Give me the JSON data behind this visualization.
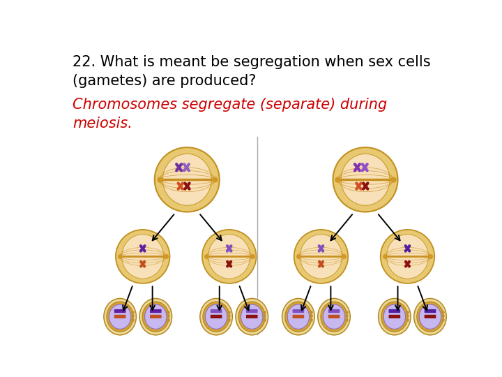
{
  "question_text": "22. What is meant be segregation when sex cells\n(gametes) are produced?",
  "answer_text": "Chromosomes segregate (separate) during\nmeiosis.",
  "question_fontsize": 15,
  "answer_fontsize": 15,
  "question_color": "#000000",
  "answer_color": "#cc0000",
  "bg_color": "#ffffff",
  "cell_outer_color": "#e8c870",
  "cell_outer_edge": "#c09020",
  "cell_inner_color": "#f5dfa8",
  "cell_inner_edge": "#c8a030",
  "spindle_color": "#c09030",
  "gamete_outer_color": "#ead890",
  "gamete_inner_color": "#c8b8f0",
  "gamete_nucleus_edge": "#a080c0",
  "purple1": "#7030a0",
  "purple2": "#9060c0",
  "orange": "#d05020",
  "darkred": "#8b1010",
  "arrow_color": "#000000"
}
